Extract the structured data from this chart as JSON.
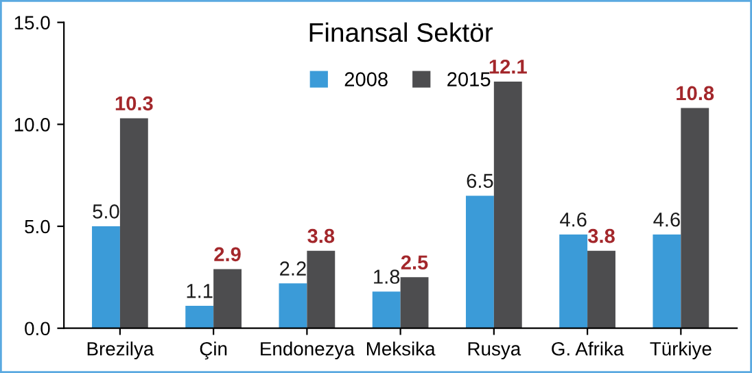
{
  "chart_data": {
    "type": "bar",
    "title": "Finansal Sektör",
    "categories": [
      "Brezilya",
      "Çin",
      "Endonezya",
      "Meksika",
      "Rusya",
      "G. Afrika",
      "Türkiye"
    ],
    "series": [
      {
        "name": "2008",
        "color": "#3b9bd8",
        "values": [
          5.0,
          1.1,
          2.2,
          1.8,
          6.5,
          4.6,
          4.6
        ],
        "value_labels": [
          "5.0",
          "1.1",
          "2.2",
          "1.8",
          "6.5",
          "4.6",
          "4.6"
        ]
      },
      {
        "name": "2015",
        "color": "#4d4d4f",
        "values": [
          10.3,
          2.9,
          3.8,
          2.5,
          12.1,
          3.8,
          10.8
        ],
        "value_labels": [
          "10.3",
          "2.9",
          "3.8",
          "2.5",
          "12.1",
          "3.8",
          "10.8"
        ]
      }
    ],
    "ylim": [
      0,
      15
    ],
    "yticks": [
      {
        "value": 0,
        "label": "0.0"
      },
      {
        "value": 5,
        "label": "5.0"
      },
      {
        "value": 10,
        "label": "10.0"
      },
      {
        "value": 15,
        "label": "15.0"
      }
    ],
    "grid": false,
    "legend": "top"
  }
}
